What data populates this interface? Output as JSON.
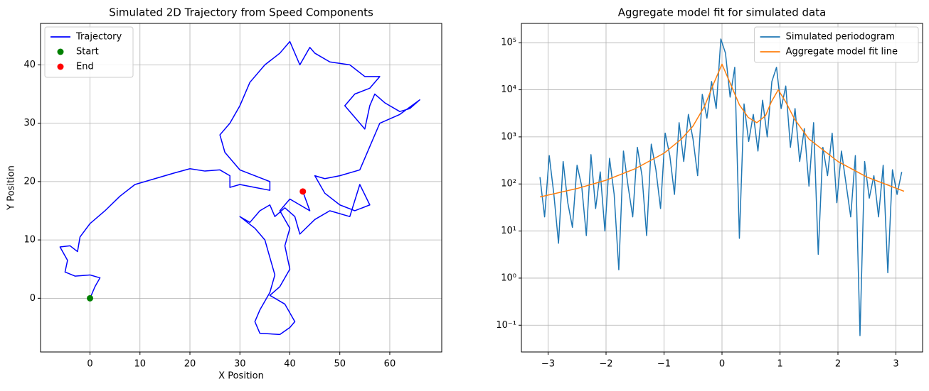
{
  "chart_data": [
    {
      "type": "line",
      "title": "Simulated 2D Trajectory from Speed Components",
      "xlabel": "X Position",
      "ylabel": "Y Position",
      "xlim": [
        -9.9,
        70.4
      ],
      "ylim": [
        -9.2,
        47.1
      ],
      "xticks": [
        0,
        10,
        20,
        30,
        40,
        50,
        60
      ],
      "yticks": [
        0,
        10,
        20,
        30,
        40
      ],
      "grid": true,
      "log_y": false,
      "legend": "upper left",
      "series": [
        {
          "name": "Trajectory",
          "color": "#0000ff",
          "mark": "line",
          "x": [
            0,
            1,
            2,
            0,
            -3,
            -5,
            -4.5,
            -6,
            -4,
            -2.5,
            -2,
            0,
            3,
            6,
            9,
            13,
            17,
            20,
            23,
            26,
            28,
            28,
            30,
            33,
            36,
            36,
            30,
            27,
            26,
            28,
            30,
            32,
            35,
            38,
            40,
            42,
            44,
            45,
            48,
            52,
            55,
            58,
            56,
            53,
            51,
            53,
            55,
            56,
            57,
            59,
            62,
            64,
            66,
            62,
            58,
            56,
            54,
            50,
            47,
            45,
            47,
            50,
            53,
            56,
            54,
            52,
            48,
            45,
            42,
            41,
            39,
            37,
            36,
            34,
            32,
            30,
            33,
            35,
            36,
            37,
            36,
            34,
            33,
            34,
            38,
            40,
            41,
            39,
            36,
            38,
            40,
            39,
            40,
            38,
            40,
            42,
            44,
            42.6
          ],
          "values": [
            0,
            2,
            3.5,
            4,
            3.8,
            4.5,
            6.5,
            8.8,
            9,
            8,
            10.5,
            12.8,
            15,
            17.5,
            19.5,
            20.5,
            21.5,
            22.2,
            21.8,
            22,
            21,
            19,
            19.5,
            19,
            18.5,
            20,
            22,
            25,
            28,
            30,
            33,
            37,
            40,
            42,
            44,
            40,
            43,
            42,
            40.5,
            40,
            38,
            38,
            36,
            35,
            33,
            31,
            29,
            33,
            35,
            33.5,
            32,
            32.5,
            34,
            31.5,
            30,
            26,
            22,
            21,
            20.5,
            21,
            18,
            16,
            15,
            16,
            19.5,
            14,
            15,
            13.5,
            11,
            14,
            15.5,
            14,
            16,
            15,
            13,
            14,
            12,
            10,
            7,
            4,
            1,
            -2,
            -4,
            -6,
            -6.2,
            -5,
            -4,
            -1,
            0.5,
            2,
            5,
            9,
            12,
            15,
            17,
            16,
            15,
            18.3
          ]
        },
        {
          "name": "Start",
          "color": "#008000",
          "mark": "dot",
          "x": [
            0
          ],
          "values": [
            0
          ]
        },
        {
          "name": "End",
          "color": "#ff0000",
          "mark": "dot",
          "x": [
            42.6
          ],
          "values": [
            18.3
          ]
        }
      ]
    },
    {
      "type": "line",
      "title": "Aggregate model fit for simulated data",
      "xlim": [
        -3.46,
        3.46
      ],
      "ylim": [
        0.027,
        257000
      ],
      "xticks": [
        {
          "value": -3,
          "label": "−3"
        },
        {
          "value": -2,
          "label": "−2"
        },
        {
          "value": -1,
          "label": "−1"
        },
        0,
        1,
        2,
        3
      ],
      "yticks": [
        {
          "value": 0.1,
          "label": "10⁻¹"
        },
        {
          "value": 1,
          "label": "10⁰"
        },
        {
          "value": 10,
          "label": "10¹"
        },
        {
          "value": 100,
          "label": "10²"
        },
        {
          "value": 1000,
          "label": "10³"
        },
        {
          "value": 10000,
          "label": "10⁴"
        },
        {
          "value": 100000,
          "label": "10⁵"
        }
      ],
      "grid": true,
      "log_y": true,
      "legend": "upper right",
      "series": [
        {
          "name": "Simulated periodogram",
          "color": "#1f77b4",
          "mark": "line",
          "x": [
            -3.14,
            -3.06,
            -2.98,
            -2.9,
            -2.82,
            -2.74,
            -2.66,
            -2.58,
            -2.5,
            -2.42,
            -2.34,
            -2.26,
            -2.18,
            -2.1,
            -2.02,
            -1.94,
            -1.86,
            -1.78,
            -1.7,
            -1.62,
            -1.54,
            -1.46,
            -1.38,
            -1.3,
            -1.22,
            -1.14,
            -1.06,
            -0.98,
            -0.9,
            -0.82,
            -0.74,
            -0.66,
            -0.58,
            -0.5,
            -0.42,
            -0.34,
            -0.26,
            -0.18,
            -0.1,
            -0.02,
            0.06,
            0.14,
            0.22,
            0.3,
            0.38,
            0.46,
            0.54,
            0.62,
            0.7,
            0.78,
            0.86,
            0.94,
            1.02,
            1.1,
            1.18,
            1.26,
            1.34,
            1.42,
            1.5,
            1.58,
            1.66,
            1.74,
            1.82,
            1.9,
            1.98,
            2.06,
            2.14,
            2.22,
            2.3,
            2.38,
            2.46,
            2.54,
            2.62,
            2.7,
            2.78,
            2.86,
            2.94,
            3.02,
            3.1
          ],
          "values": [
            140,
            20,
            400,
            60,
            5.5,
            300,
            40,
            12,
            250,
            90,
            8,
            420,
            30,
            180,
            10,
            350,
            60,
            1.5,
            500,
            90,
            20,
            600,
            150,
            8,
            700,
            200,
            30,
            1200,
            400,
            60,
            2000,
            300,
            3000,
            900,
            150,
            8000,
            2500,
            15000,
            4000,
            120000,
            60000,
            7000,
            30000,
            7,
            5000,
            800,
            3000,
            500,
            6000,
            1000,
            15000,
            30000,
            4000,
            12000,
            600,
            4000,
            300,
            1500,
            90,
            2000,
            3.2,
            600,
            150,
            1200,
            40,
            500,
            100,
            20,
            400,
            0.06,
            300,
            50,
            150,
            20,
            250,
            1.3,
            200,
            60,
            180
          ]
        },
        {
          "name": "Aggregate model fit line",
          "color": "#ff7f0e",
          "mark": "line",
          "x": [
            -3.14,
            -2.5,
            -2,
            -1.5,
            -1,
            -0.7,
            -0.5,
            -0.3,
            -0.15,
            0,
            0.15,
            0.3,
            0.45,
            0.6,
            0.75,
            0.85,
            0.97,
            1.1,
            1.25,
            1.5,
            2,
            2.5,
            3.14
          ],
          "values": [
            53,
            80,
            120,
            210,
            450,
            900,
            1700,
            4500,
            13000,
            35000,
            13000,
            4800,
            2600,
            2000,
            2800,
            5500,
            10000,
            5500,
            2400,
            900,
            300,
            140,
            70
          ]
        }
      ]
    }
  ]
}
